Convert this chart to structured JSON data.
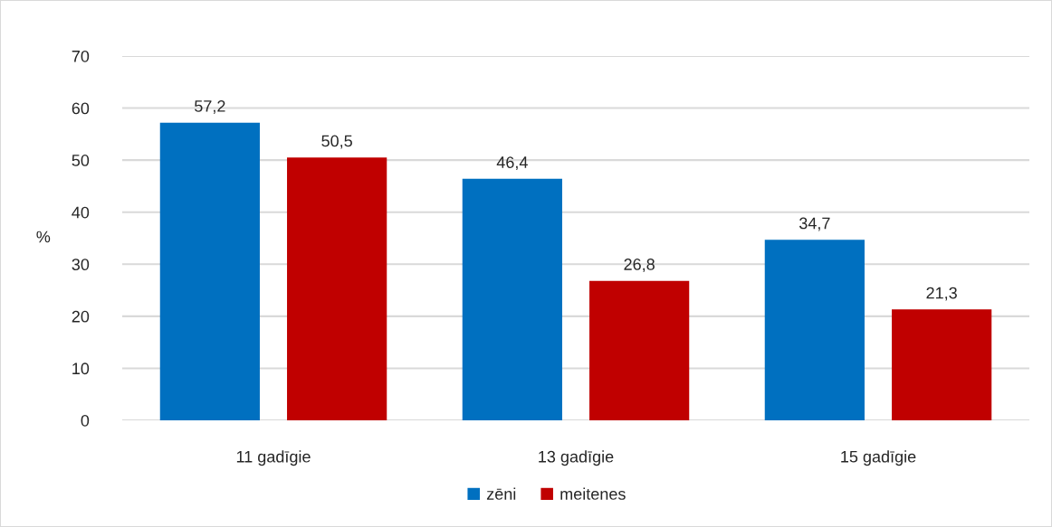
{
  "chart_data": {
    "type": "bar",
    "ylabel": "%",
    "categories": [
      "11 gadīgie",
      "13 gadīgie",
      "15 gadīgie"
    ],
    "series": [
      {
        "name": "zēni",
        "color": "#0070c0",
        "values": [
          57.2,
          46.4,
          34.7
        ],
        "value_labels": [
          "57,2",
          "46,4",
          "34,7"
        ]
      },
      {
        "name": "meitenes",
        "color": "#c00000",
        "values": [
          50.5,
          26.8,
          21.3
        ],
        "value_labels": [
          "50,5",
          "26,8",
          "21,3"
        ]
      }
    ],
    "ylim": [
      0,
      70
    ],
    "yticks": [
      0,
      10,
      20,
      30,
      40,
      50,
      60,
      70
    ],
    "grid": "y",
    "legend": "bottom"
  }
}
